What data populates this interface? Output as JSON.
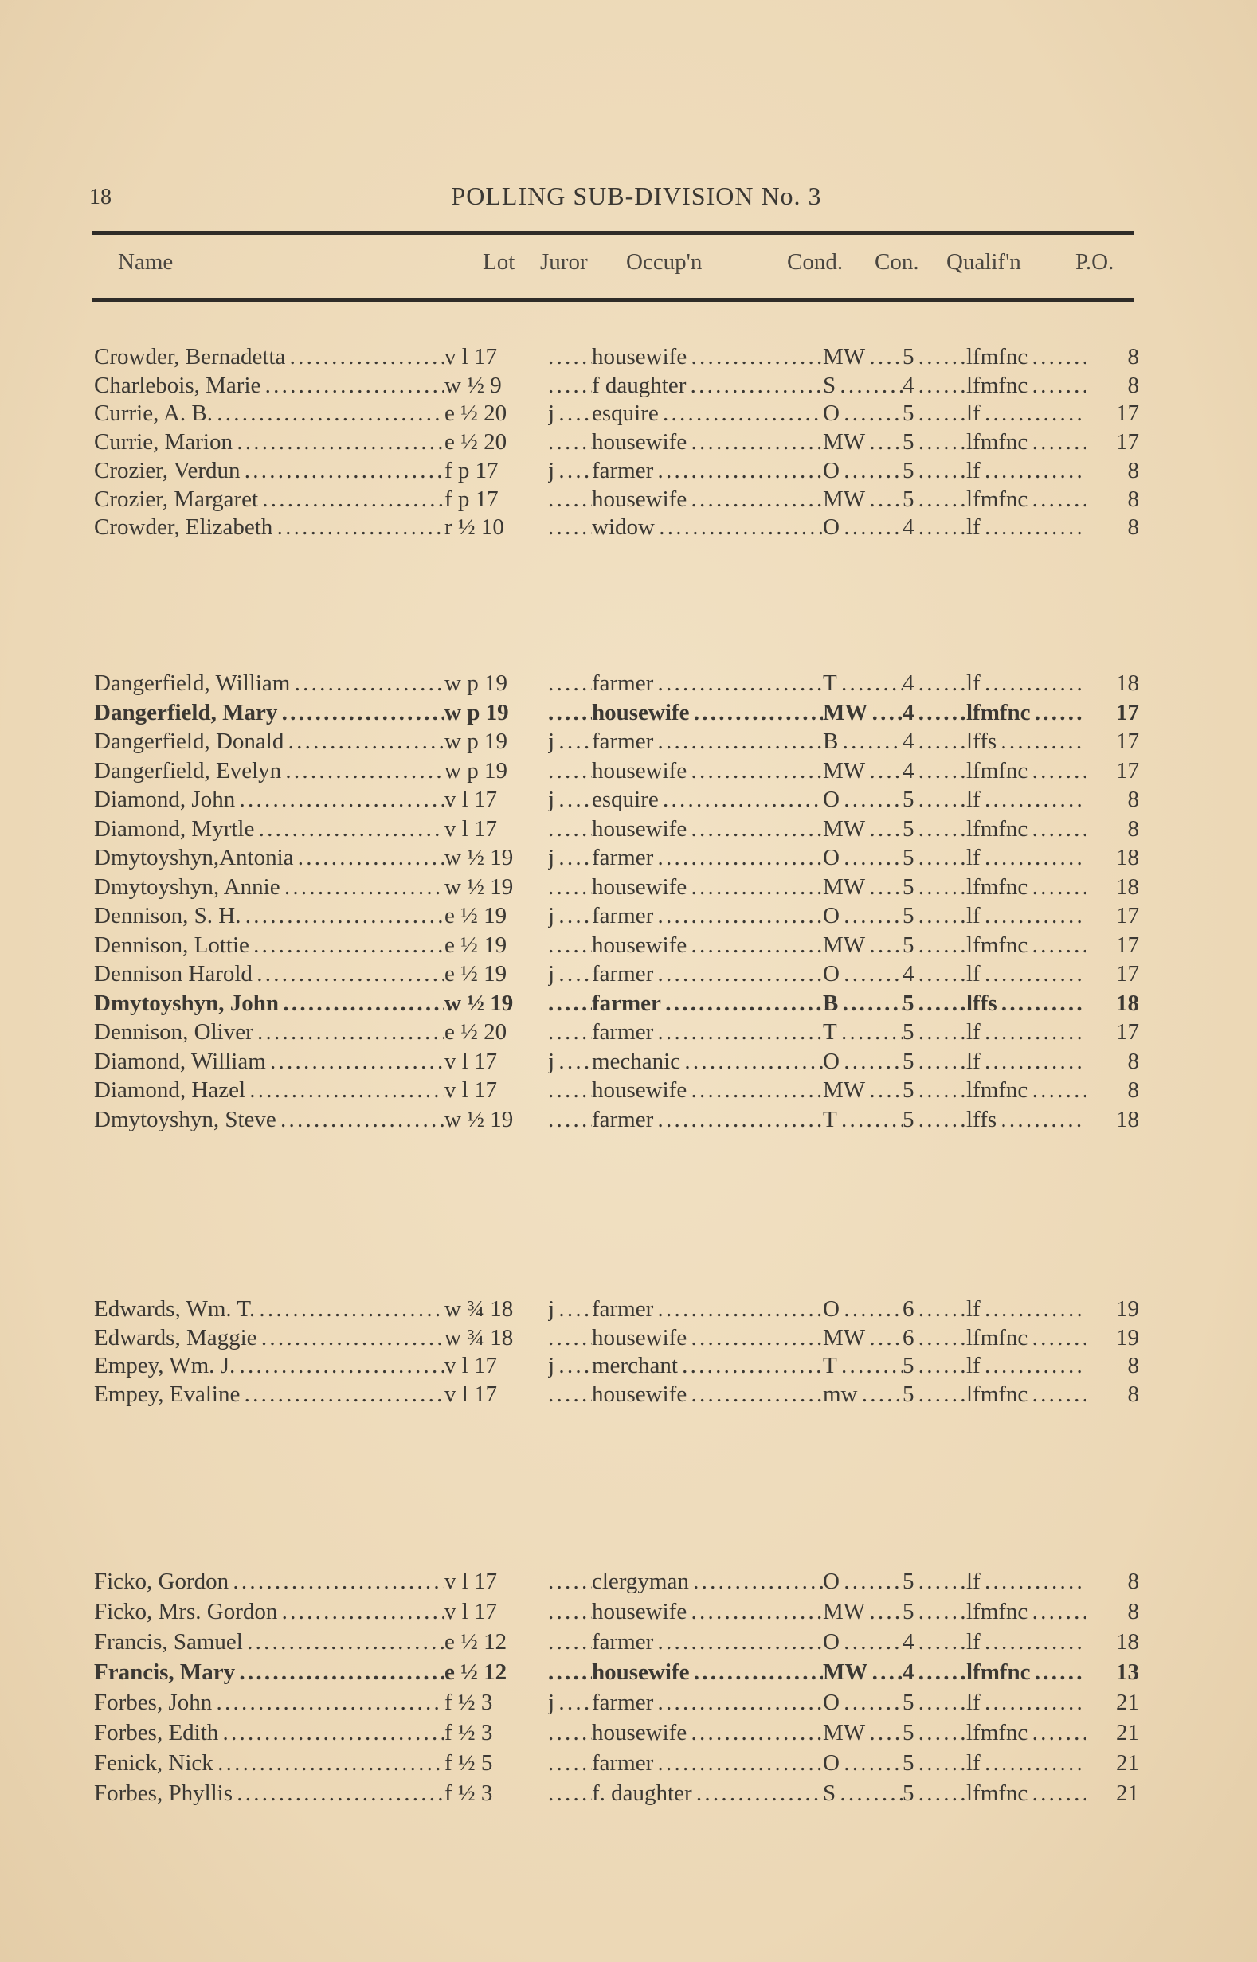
{
  "page_number": "18",
  "title": "POLLING SUB-DIVISION No. 3",
  "columns": {
    "name": "Name",
    "lot": "Lot",
    "juror": "Juror",
    "occupation": "Occup'n",
    "cond": "Cond.",
    "con": "Con.",
    "qualif": "Qualif'n",
    "po": "P.O."
  },
  "groups": [
    {
      "rows": [
        {
          "name": "Crowder, Bernadetta",
          "lot": "v l 17",
          "juror": "",
          "occupation": "housewife",
          "cond": "MW",
          "con": "5",
          "qualif": "lfmfnc",
          "po": "8"
        },
        {
          "name": "Charlebois, Marie",
          "lot": "w ½ 9",
          "juror": "",
          "occupation": "f daughter",
          "cond": "S",
          "con": "4",
          "qualif": "lfmfnc",
          "po": "8"
        },
        {
          "name": "Currie, A. B.",
          "lot": "e ½ 20",
          "juror": "j",
          "occupation": "esquire",
          "cond": "O",
          "con": "5",
          "qualif": "lf",
          "po": "17"
        },
        {
          "name": "Currie, Marion",
          "lot": "e ½ 20",
          "juror": "",
          "occupation": "housewife",
          "cond": "MW",
          "con": "5",
          "qualif": "lfmfnc",
          "po": "17"
        },
        {
          "name": "Crozier, Verdun",
          "lot": "f p 17",
          "juror": "j",
          "occupation": "farmer",
          "cond": "O",
          "con": "5",
          "qualif": "lf",
          "po": "8"
        },
        {
          "name": "Crozier, Margaret",
          "lot": "f p 17",
          "juror": "",
          "occupation": "housewife",
          "cond": "MW",
          "con": "5",
          "qualif": "lfmfnc",
          "po": "8"
        },
        {
          "name": "Crowder, Elizabeth",
          "lot": "r ½ 10",
          "juror": "",
          "occupation": "widow",
          "cond": "O",
          "con": "4",
          "qualif": "lf",
          "po": "8"
        }
      ]
    },
    {
      "rows": [
        {
          "name": "Dangerfield, William",
          "lot": "w p 19",
          "juror": "",
          "occupation": "farmer",
          "cond": "T",
          "con": "4",
          "qualif": "lf",
          "po": "18"
        },
        {
          "name": "Dangerfield, Mary",
          "lot": "w p 19",
          "juror": "",
          "occupation": "housewife",
          "cond": "MW",
          "con": "4",
          "qualif": "lfmfnc",
          "po": "17",
          "bold": true
        },
        {
          "name": "Dangerfield, Donald",
          "lot": "w p 19",
          "juror": "j",
          "occupation": "farmer",
          "cond": "B",
          "con": "4",
          "qualif": "lffs",
          "po": "17"
        },
        {
          "name": "Dangerfield, Evelyn",
          "lot": "w p 19",
          "juror": "",
          "occupation": "housewife",
          "cond": "MW",
          "con": "4",
          "qualif": "lfmfnc",
          "po": "17"
        },
        {
          "name": "Diamond, John",
          "lot": "v l 17",
          "juror": "j",
          "occupation": "esquire",
          "cond": "O",
          "con": "5",
          "qualif": "lf",
          "po": "8"
        },
        {
          "name": "Diamond, Myrtle",
          "lot": "v l 17",
          "juror": "",
          "occupation": "housewife",
          "cond": "MW",
          "con": "5",
          "qualif": "lfmfnc",
          "po": "8"
        },
        {
          "name": "Dmytoyshyn,Antonia",
          "lot": "w ½ 19",
          "juror": "j",
          "occupation": "farmer",
          "cond": "O",
          "con": "5",
          "qualif": "lf",
          "po": "18"
        },
        {
          "name": "Dmytoyshyn, Annie",
          "lot": "w ½ 19",
          "juror": "",
          "occupation": "housewife",
          "cond": "MW",
          "con": "5",
          "qualif": "lfmfnc",
          "po": "18"
        },
        {
          "name": "Dennison, S. H.",
          "lot": "e ½ 19",
          "juror": "j",
          "occupation": "farmer",
          "cond": "O",
          "con": "5",
          "qualif": "lf",
          "po": "17"
        },
        {
          "name": "Dennison, Lottie",
          "lot": "e ½ 19",
          "juror": "",
          "occupation": "housewife",
          "cond": "MW",
          "con": "5",
          "qualif": "lfmfnc",
          "po": "17"
        },
        {
          "name": "Dennison Harold",
          "lot": "e ½ 19",
          "juror": "j",
          "occupation": "farmer",
          "cond": "O",
          "con": "4",
          "qualif": "lf",
          "po": "17"
        },
        {
          "name": "Dmytoyshyn, John",
          "lot": "w ½ 19",
          "juror": "",
          "occupation": "farmer",
          "cond": "B",
          "con": "5",
          "qualif": "lffs",
          "po": "18",
          "bold": true
        },
        {
          "name": "Dennison, Oliver",
          "lot": "e ½ 20",
          "juror": "",
          "occupation": "farmer",
          "cond": "T",
          "con": "5",
          "qualif": "lf",
          "po": "17"
        },
        {
          "name": "Diamond, William",
          "lot": "v l 17",
          "juror": "j",
          "occupation": "mechanic",
          "cond": "O",
          "con": "5",
          "qualif": "lf",
          "po": "8"
        },
        {
          "name": "Diamond, Hazel",
          "lot": "v l 17",
          "juror": "",
          "occupation": "housewife",
          "cond": "MW",
          "con": "5",
          "qualif": "lfmfnc",
          "po": "8"
        },
        {
          "name": "Dmytoyshyn, Steve",
          "lot": "w ½ 19",
          "juror": "",
          "occupation": "farmer",
          "cond": "T",
          "con": "5",
          "qualif": "lffs",
          "po": "18"
        }
      ]
    },
    {
      "rows": [
        {
          "name": "Edwards, Wm. T.",
          "lot": "w ¾ 18",
          "juror": "j",
          "occupation": "farmer",
          "cond": "O",
          "con": "6",
          "qualif": "lf",
          "po": "19"
        },
        {
          "name": "Edwards, Maggie",
          "lot": "w ¾ 18",
          "juror": "",
          "occupation": "housewife",
          "cond": "MW",
          "con": "6",
          "qualif": "lfmfnc",
          "po": "19"
        },
        {
          "name": "Empey, Wm. J.",
          "lot": "v l 17",
          "juror": "j",
          "occupation": "merchant",
          "cond": "T",
          "con": "5",
          "qualif": "lf",
          "po": "8"
        },
        {
          "name": "Empey, Evaline",
          "lot": "v l 17",
          "juror": "",
          "occupation": "housewife",
          "cond": "mw",
          "con": "5",
          "qualif": "lfmfnc",
          "po": "8"
        }
      ]
    },
    {
      "rows": [
        {
          "name": "Ficko, Gordon",
          "lot": "v l 17",
          "juror": "",
          "occupation": "clergyman",
          "cond": "O",
          "con": "5",
          "qualif": "lf",
          "po": "8"
        },
        {
          "name": "Ficko, Mrs. Gordon",
          "lot": "v l 17",
          "juror": "",
          "occupation": "housewife",
          "cond": "MW",
          "con": "5",
          "qualif": "lfmfnc",
          "po": "8"
        },
        {
          "name": "Francis, Samuel",
          "lot": "e ½ 12",
          "juror": "",
          "occupation": "farmer",
          "cond": "O",
          "con": "4",
          "qualif": "lf",
          "po": "18"
        },
        {
          "name": "Francis, Mary",
          "lot": "e ½ 12",
          "juror": "",
          "occupation": "housewife",
          "cond": "MW",
          "con": "4",
          "qualif": "lfmfnc",
          "po": "13",
          "bold": true
        },
        {
          "name": "Forbes, John",
          "lot": "f ½ 3",
          "juror": "j",
          "occupation": "farmer",
          "cond": "O",
          "con": "5",
          "qualif": "lf",
          "po": "21"
        },
        {
          "name": "Forbes, Edith",
          "lot": "f ½ 3",
          "juror": "",
          "occupation": "housewife",
          "cond": "MW",
          "con": "5",
          "qualif": "lfmfnc",
          "po": "21"
        },
        {
          "name": "Fenick, Nick",
          "lot": "f ½ 5",
          "juror": "",
          "occupation": "farmer",
          "cond": "O",
          "con": "5",
          "qualif": "lf",
          "po": "21"
        },
        {
          "name": "Forbes, Phyllis",
          "lot": "f ½ 3",
          "juror": "",
          "occupation": "f. daughter",
          "cond": "S",
          "con": "5",
          "qualif": "lfmfnc",
          "po": "21"
        }
      ]
    }
  ]
}
